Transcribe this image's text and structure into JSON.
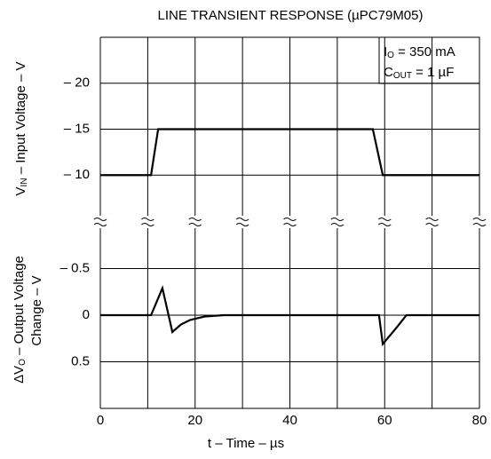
{
  "chart_data": [
    {
      "type": "line",
      "title": "LINE TRANSIENT RESPONSE (µPC79M05)",
      "ylabel": [
        "V",
        "IN",
        " – Input Voltage – V"
      ],
      "annotations": [
        [
          "I",
          "O",
          " = 350 mA"
        ],
        [
          "C",
          "OUT",
          " = 1 µF"
        ]
      ],
      "xlim": [
        0,
        80
      ],
      "ylim": [
        -5,
        -25
      ],
      "yticks": [
        {
          "value": -20,
          "label": "– 20"
        },
        {
          "value": -15,
          "label": "– 15"
        },
        {
          "value": -10,
          "label": "– 10"
        }
      ],
      "x": [
        0,
        10.7,
        12.2,
        57.5,
        59.6,
        80
      ],
      "values": [
        -10,
        -10,
        -15,
        -15,
        -10,
        -10
      ],
      "color": "#000000",
      "grid": true
    },
    {
      "type": "line",
      "ylabel": [
        [
          "Δ",
          "V",
          "O",
          " – Output Voltage"
        ],
        [
          "Change – V"
        ]
      ],
      "xlabel": "t – Time – µs",
      "xlim": [
        0,
        80
      ],
      "ylim": [
        1,
        -1
      ],
      "xticks": [
        0,
        20,
        40,
        60,
        80
      ],
      "x_minor_ticks": [
        10,
        30,
        50,
        70
      ],
      "yticks": [
        {
          "value": -0.5,
          "label": "– 0.5"
        },
        0,
        0.5
      ],
      "x": [
        0,
        10.7,
        13.1,
        15.2,
        17,
        19,
        22,
        26,
        58.8,
        59.6,
        62.4,
        64.6,
        80
      ],
      "values": [
        0,
        0,
        -0.29,
        0.18,
        0.1,
        0.05,
        0.015,
        0,
        0,
        0.31,
        0.14,
        0,
        0
      ],
      "color": "#000000",
      "grid": true
    }
  ]
}
